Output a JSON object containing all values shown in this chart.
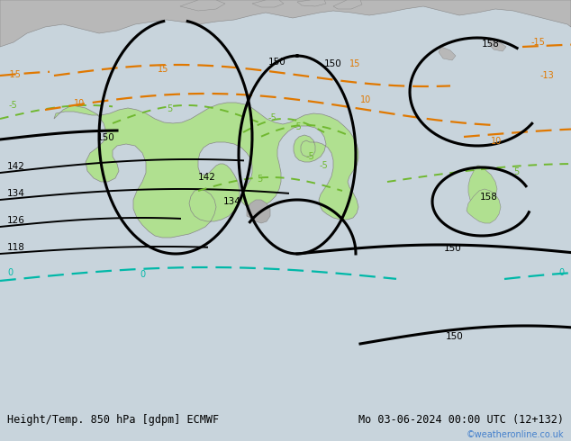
{
  "title_left": "Height/Temp. 850 hPa [gdpm] ECMWF",
  "title_right": "Mo 03-06-2024 00:00 UTC (12+132)",
  "watermark": "©weatheronline.co.uk",
  "bg_color": "#c8d4dc",
  "land_gray_color": "#b8b8b8",
  "australia_green_color": "#b0e090",
  "nz_green_color": "#b0e090",
  "bottom_bar_color": "#e0e0e0",
  "black_lw": 2.2,
  "thin_black_lw": 1.4,
  "green_lw": 1.4,
  "orange_lw": 1.6,
  "teal_lw": 1.6,
  "black_color": "#000000",
  "green_color": "#70b830",
  "orange_color": "#e07800",
  "teal_color": "#00b8a8",
  "title_fontsize": 8.5,
  "watermark_color": "#4480cc",
  "label_fontsize": 7.5
}
